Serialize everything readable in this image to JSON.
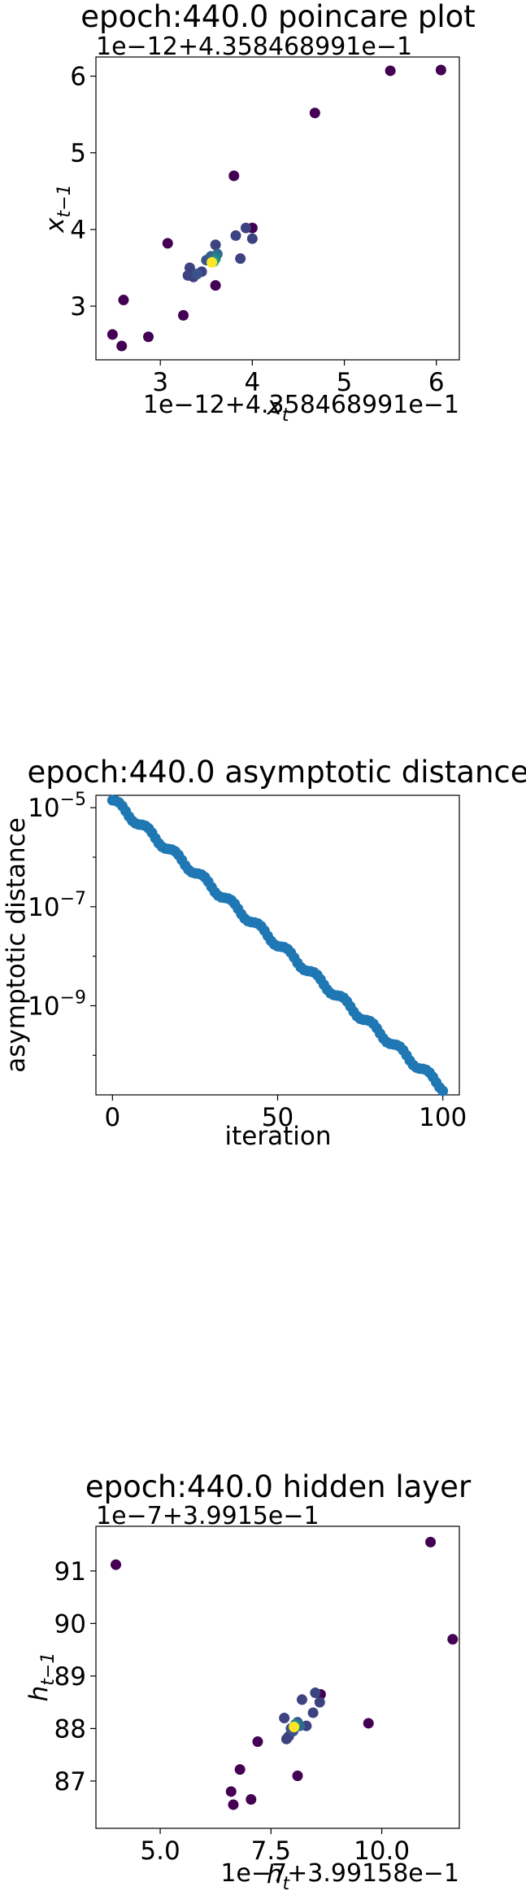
{
  "chart_data": [
    {
      "type": "scatter",
      "title": "epoch:440.0 poincare plot",
      "offset_text_x": "1e−12+4.358468991e−1",
      "offset_text_y": "1e−12+4.358468991e−1",
      "xlabel": "x",
      "xlabel_sub": "t",
      "ylabel": "x",
      "ylabel_sub": "t−1",
      "xlim": [
        2.3,
        6.25
      ],
      "ylim": [
        2.3,
        6.25
      ],
      "xticks": [
        3,
        4,
        5,
        6
      ],
      "yticks": [
        3,
        4,
        5,
        6
      ],
      "colormap": [
        "#440154",
        "#3b528b",
        "#21918c",
        "#5ec962",
        "#fde725"
      ],
      "points": [
        {
          "x": 6.05,
          "y": 6.08,
          "c": 0
        },
        {
          "x": 5.5,
          "y": 6.07,
          "c": 0
        },
        {
          "x": 4.68,
          "y": 5.52,
          "c": 0
        },
        {
          "x": 3.8,
          "y": 4.7,
          "c": 0
        },
        {
          "x": 4.0,
          "y": 4.02,
          "c": 0
        },
        {
          "x": 3.93,
          "y": 4.02,
          "c": 0.2
        },
        {
          "x": 4.0,
          "y": 3.88,
          "c": 0.2
        },
        {
          "x": 3.82,
          "y": 3.92,
          "c": 0.2
        },
        {
          "x": 3.6,
          "y": 3.8,
          "c": 0.2
        },
        {
          "x": 3.08,
          "y": 3.82,
          "c": 0
        },
        {
          "x": 3.87,
          "y": 3.62,
          "c": 0.2
        },
        {
          "x": 3.6,
          "y": 3.27,
          "c": 0
        },
        {
          "x": 2.6,
          "y": 3.08,
          "c": 0
        },
        {
          "x": 3.25,
          "y": 2.88,
          "c": 0
        },
        {
          "x": 2.87,
          "y": 2.6,
          "c": 0
        },
        {
          "x": 2.48,
          "y": 2.63,
          "c": 0
        },
        {
          "x": 2.58,
          "y": 2.48,
          "c": 0
        },
        {
          "x": 3.32,
          "y": 3.5,
          "c": 0.2
        },
        {
          "x": 3.3,
          "y": 3.4,
          "c": 0.2
        },
        {
          "x": 3.36,
          "y": 3.38,
          "c": 0.2
        },
        {
          "x": 3.45,
          "y": 3.45,
          "c": 0.2
        },
        {
          "x": 3.4,
          "y": 3.42,
          "c": 0.25
        },
        {
          "x": 3.5,
          "y": 3.6,
          "c": 0.25
        },
        {
          "x": 3.55,
          "y": 3.65,
          "c": 0.3
        },
        {
          "x": 3.62,
          "y": 3.68,
          "c": 0.35
        },
        {
          "x": 3.6,
          "y": 3.62,
          "c": 0.45
        },
        {
          "x": 3.58,
          "y": 3.58,
          "c": 0.55
        },
        {
          "x": 3.56,
          "y": 3.57,
          "c": 1.0
        }
      ]
    },
    {
      "type": "scatter",
      "title": "epoch:440.0 asymptotic distance",
      "xlabel": "iteration",
      "ylabel": "asymptotic distance",
      "yscale": "log",
      "xlim": [
        -5,
        105
      ],
      "log_ylim": [
        -10.8,
        -4.75
      ],
      "xticks": [
        0,
        50,
        100
      ],
      "ytick_exponents": [
        -5,
        -7,
        -9
      ],
      "ytick_base": "10",
      "color": "#1f77b4",
      "series": [
        {
          "x_start": 0,
          "x_end": 100,
          "log10_y_start": -4.85,
          "log10_y_end": -10.65,
          "count": 101,
          "ripple_period": 8.5,
          "ripple_amplitude": 0.07
        }
      ]
    },
    {
      "type": "scatter",
      "title": "epoch:440.0 hidden layer",
      "offset_text_x": "1e−7+3.99158e−1",
      "offset_text_y": "1e−7+3.9915e−1",
      "xlabel": "h",
      "xlabel_sub": "t",
      "ylabel": "h",
      "ylabel_sub": "t−1",
      "xlim": [
        3.55,
        11.75
      ],
      "ylim": [
        86.1,
        91.85
      ],
      "xticks": [
        5.0,
        7.5,
        10.0
      ],
      "xtick_labels": [
        "5.0",
        "7.5",
        "10.0"
      ],
      "yticks": [
        87,
        88,
        89,
        90,
        91
      ],
      "colormap": [
        "#440154",
        "#3b528b",
        "#21918c",
        "#5ec962",
        "#fde725"
      ],
      "points": [
        {
          "x": 11.1,
          "y": 91.55,
          "c": 0
        },
        {
          "x": 4.0,
          "y": 91.12,
          "c": 0
        },
        {
          "x": 11.6,
          "y": 89.7,
          "c": 0
        },
        {
          "x": 8.62,
          "y": 88.65,
          "c": 0
        },
        {
          "x": 8.5,
          "y": 88.68,
          "c": 0.2
        },
        {
          "x": 8.6,
          "y": 88.5,
          "c": 0.2
        },
        {
          "x": 8.2,
          "y": 88.55,
          "c": 0.2
        },
        {
          "x": 8.45,
          "y": 88.3,
          "c": 0.2
        },
        {
          "x": 9.7,
          "y": 88.1,
          "c": 0
        },
        {
          "x": 7.8,
          "y": 88.2,
          "c": 0.2
        },
        {
          "x": 8.3,
          "y": 88.05,
          "c": 0.2
        },
        {
          "x": 7.2,
          "y": 87.75,
          "c": 0
        },
        {
          "x": 6.8,
          "y": 87.22,
          "c": 0
        },
        {
          "x": 8.1,
          "y": 87.1,
          "c": 0
        },
        {
          "x": 6.6,
          "y": 86.8,
          "c": 0
        },
        {
          "x": 7.05,
          "y": 86.65,
          "c": 0
        },
        {
          "x": 6.65,
          "y": 86.55,
          "c": 0
        },
        {
          "x": 7.85,
          "y": 87.8,
          "c": 0.2
        },
        {
          "x": 7.9,
          "y": 87.85,
          "c": 0.2
        },
        {
          "x": 8.0,
          "y": 87.95,
          "c": 0.25
        },
        {
          "x": 7.95,
          "y": 88.0,
          "c": 0.25
        },
        {
          "x": 8.1,
          "y": 88.12,
          "c": 0.3
        },
        {
          "x": 8.15,
          "y": 88.05,
          "c": 0.35
        },
        {
          "x": 8.05,
          "y": 88.08,
          "c": 0.45
        },
        {
          "x": 8.02,
          "y": 88.03,
          "c": 1.0
        }
      ]
    }
  ]
}
